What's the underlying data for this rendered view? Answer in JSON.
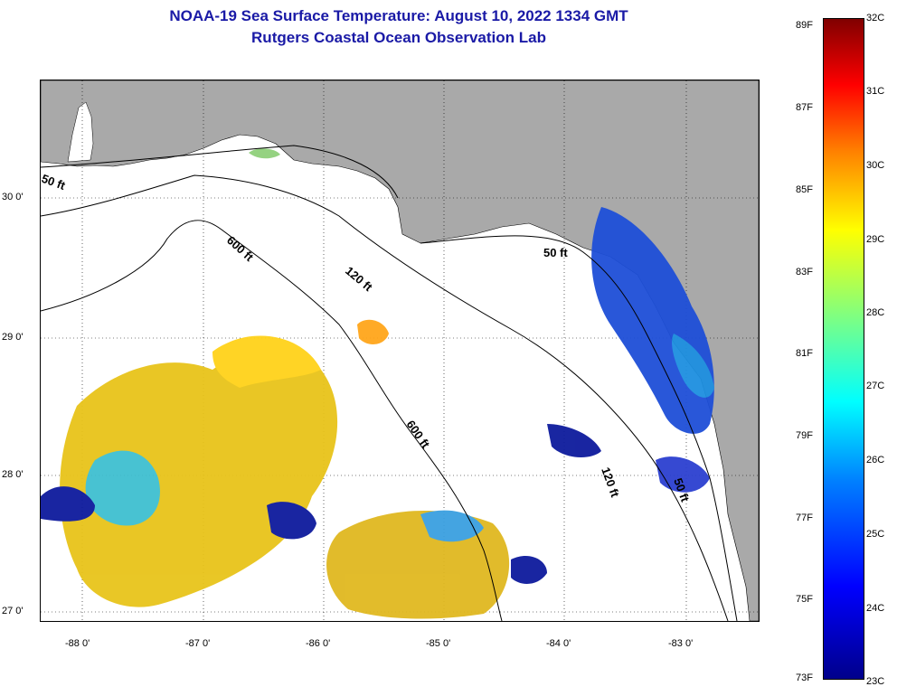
{
  "title_line1": "NOAA-19 Sea Surface Temperature:  August 10, 2022 1334 GMT",
  "title_line2": "Rutgers Coastal Ocean Observation Lab",
  "map": {
    "lat_labels": [
      "30 0'",
      "29 0'",
      "28 0'",
      "27 0'"
    ],
    "lon_labels": [
      "-88 0'",
      "-87 0'",
      "-86 0'",
      "-85 0'",
      "-84 0'",
      "-83 0'"
    ],
    "contour_labels": [
      "50 ft",
      "50 ft",
      "50 ft",
      "120 ft",
      "120 ft",
      "600 ft",
      "600 ft"
    ],
    "land_color": "#a9a9a9",
    "water_color": "#ffffff"
  },
  "colorbar": {
    "fahrenheit": [
      "89F",
      "87F",
      "85F",
      "83F",
      "81F",
      "79F",
      "77F",
      "75F",
      "73F"
    ],
    "celsius": [
      "32C",
      "31C",
      "30C",
      "29C",
      "28C",
      "27C",
      "26C",
      "25C",
      "24C",
      "23C"
    ]
  }
}
